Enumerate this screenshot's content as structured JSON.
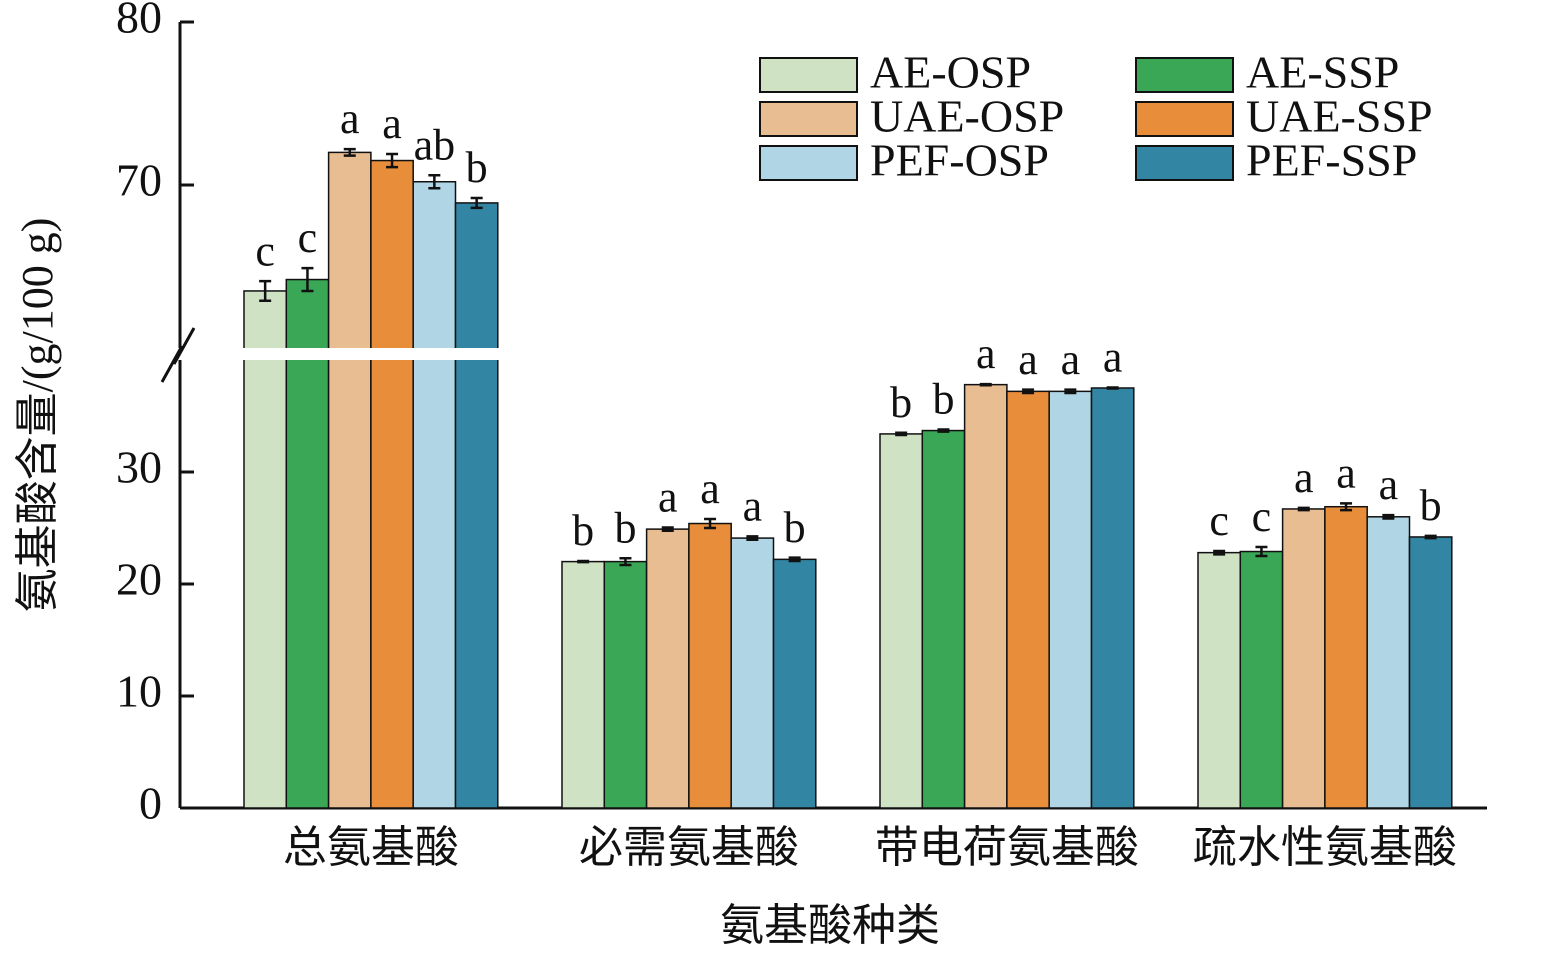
{
  "chart_data": {
    "type": "bar",
    "y_label": "氨基酸含量/(g/100 g)",
    "x_label": "氨基酸种类",
    "categories": [
      "总氨基酸",
      "必需氨基酸",
      "带电荷氨基酸",
      "疏水性氨基酸"
    ],
    "ylim": [
      0,
      80
    ],
    "ybreak": [
      40,
      60
    ],
    "yticks": [
      0,
      10,
      20,
      30,
      70,
      80
    ],
    "grid": false,
    "legend": "upper right",
    "series": [
      {
        "name": "AE-OSP",
        "color": "#cfe2c4",
        "values": [
          63.5,
          22.0,
          33.4,
          22.8
        ],
        "errors": [
          0.6,
          0.05,
          0.1,
          0.15
        ],
        "letters": [
          "c",
          "b",
          "b",
          "c"
        ]
      },
      {
        "name": "AE-SSP",
        "color": "#3aa756",
        "values": [
          64.2,
          22.0,
          33.7,
          22.9
        ],
        "errors": [
          0.7,
          0.3,
          0.1,
          0.4
        ],
        "letters": [
          "c",
          "b",
          "b",
          "c"
        ]
      },
      {
        "name": "UAE-OSP",
        "color": "#e8bd91",
        "values": [
          72.0,
          24.9,
          37.8,
          26.7
        ],
        "errors": [
          0.2,
          0.15,
          0.05,
          0.1
        ],
        "letters": [
          "a",
          "a",
          "a",
          "a"
        ]
      },
      {
        "name": "UAE-SSP",
        "color": "#e88d3a",
        "values": [
          71.5,
          25.4,
          37.2,
          26.9
        ],
        "errors": [
          0.4,
          0.4,
          0.15,
          0.3
        ],
        "letters": [
          "a",
          "a",
          "a",
          "a"
        ]
      },
      {
        "name": "PEF-OSP",
        "color": "#b0d6e6",
        "values": [
          70.2,
          24.1,
          37.2,
          26.0
        ],
        "errors": [
          0.4,
          0.15,
          0.15,
          0.15
        ],
        "letters": [
          "ab",
          "a",
          "a",
          "a"
        ]
      },
      {
        "name": "PEF-SSP",
        "color": "#3386a3",
        "values": [
          68.9,
          22.2,
          37.5,
          24.2
        ],
        "errors": [
          0.3,
          0.15,
          0.05,
          0.1
        ],
        "letters": [
          "b",
          "b",
          "a",
          "b"
        ]
      }
    ]
  }
}
